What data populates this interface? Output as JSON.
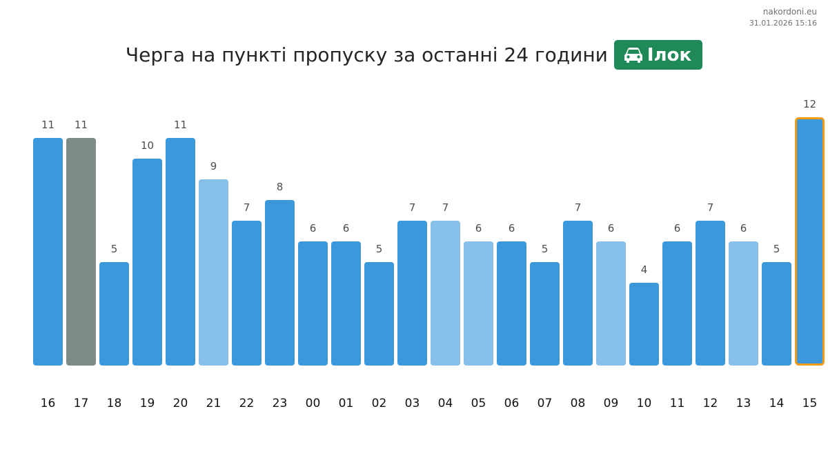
{
  "header": {
    "source": "nakordoni.eu",
    "timestamp": "31.01.2026 15:16",
    "title": "Черга на пункті пропуску за останні 24 години",
    "checkpoint_label": "Ілок",
    "checkpoint_icon": "car-icon"
  },
  "colors": {
    "normal": "#3a98db",
    "light": "#86c0e8",
    "gray": "#7d8b89",
    "current_border": "#f39c12",
    "badge": "#1f8a57"
  },
  "chart_data": {
    "type": "bar",
    "title": "Черга на пункті пропуску за останні 24 години",
    "xlabel": "",
    "ylabel": "",
    "ylim": [
      0,
      12
    ],
    "grid": false,
    "categories": [
      "16",
      "17",
      "18",
      "19",
      "20",
      "21",
      "22",
      "23",
      "00",
      "01",
      "02",
      "03",
      "04",
      "05",
      "06",
      "07",
      "08",
      "09",
      "10",
      "11",
      "12",
      "13",
      "14",
      "15"
    ],
    "values": [
      11,
      11,
      5,
      10,
      11,
      9,
      7,
      8,
      6,
      6,
      5,
      7,
      7,
      6,
      6,
      5,
      7,
      6,
      4,
      6,
      7,
      6,
      5,
      12
    ],
    "bar_styles": [
      "normal",
      "gray",
      "normal",
      "normal",
      "normal",
      "light",
      "normal",
      "normal",
      "normal",
      "normal",
      "normal",
      "normal",
      "light",
      "light",
      "normal",
      "normal",
      "normal",
      "light",
      "normal",
      "normal",
      "normal",
      "light",
      "normal",
      "current"
    ]
  }
}
